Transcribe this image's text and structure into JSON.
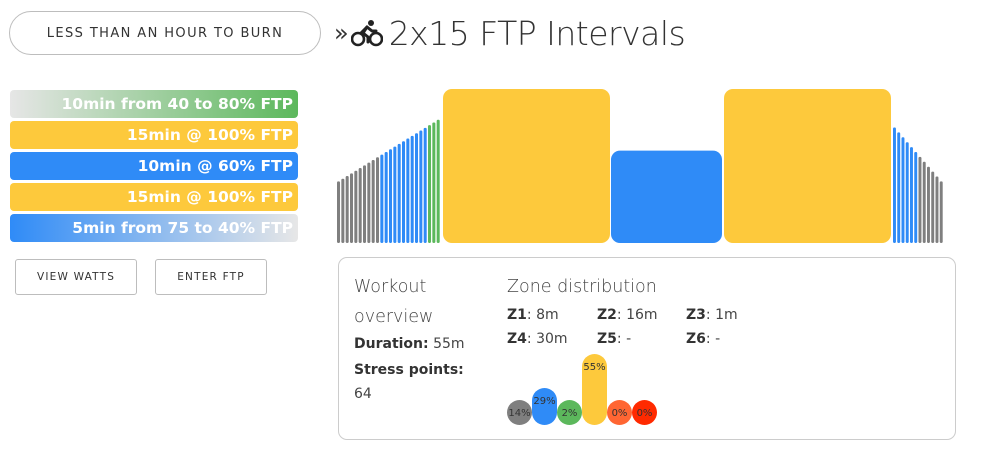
{
  "header": {
    "category_button": "LESS THAN AN HOUR TO BURN",
    "chevron": "»",
    "bike_icon": "cyclist-icon",
    "title": "2x15 FTP Intervals"
  },
  "steps": [
    {
      "label": "10min from 40 to 80% FTP",
      "kind": "warmup"
    },
    {
      "label": "15min @ 100% FTP",
      "kind": "interval"
    },
    {
      "label": "10min @ 60% FTP",
      "kind": "recovery"
    },
    {
      "label": "15min @ 100% FTP",
      "kind": "interval"
    },
    {
      "label": "5min from 75 to 40% FTP",
      "kind": "cooldown"
    }
  ],
  "buttons": {
    "view_watts": "VIEW WATTS",
    "enter_ftp": "ENTER FTP"
  },
  "colors": {
    "z1": "#7f7f7f",
    "z2": "#2f8bf7",
    "z3": "#5cb85c",
    "z4": "#fdc93c",
    "z5": "#ff6633",
    "z6": "#ff2a00"
  },
  "chart_data": {
    "type": "bar",
    "title": "",
    "xlabel": "",
    "ylabel": "",
    "unit": "% FTP",
    "segments": [
      {
        "kind": "ramp",
        "duration_min": 10,
        "from_pct": 40,
        "to_pct": 80
      },
      {
        "kind": "steady",
        "duration_min": 15,
        "pct": 100
      },
      {
        "kind": "steady",
        "duration_min": 10,
        "pct": 60
      },
      {
        "kind": "steady",
        "duration_min": 15,
        "pct": 100
      },
      {
        "kind": "ramp",
        "duration_min": 5,
        "from_pct": 75,
        "to_pct": 40
      }
    ]
  },
  "overview": {
    "title": "Workout overview",
    "duration_label": "Duration:",
    "duration_value": "55m",
    "stress_label": "Stress points:",
    "stress_value": "64"
  },
  "zones": {
    "title": "Zone distribution",
    "items": [
      {
        "label": "Z1",
        "time": "8m"
      },
      {
        "label": "Z2",
        "time": "16m"
      },
      {
        "label": "Z3",
        "time": "1m"
      },
      {
        "label": "Z4",
        "time": "30m"
      },
      {
        "label": "Z5",
        "time": "-"
      },
      {
        "label": "Z6",
        "time": "-"
      }
    ],
    "distribution": [
      {
        "zone": "Z1",
        "pct": 14,
        "label": "14%"
      },
      {
        "zone": "Z2",
        "pct": 29,
        "label": "29%"
      },
      {
        "zone": "Z3",
        "pct": 2,
        "label": "2%"
      },
      {
        "zone": "Z4",
        "pct": 55,
        "label": "55%"
      },
      {
        "zone": "Z5",
        "pct": 0,
        "label": "0%"
      },
      {
        "zone": "Z6",
        "pct": 0,
        "label": "0%"
      }
    ]
  }
}
